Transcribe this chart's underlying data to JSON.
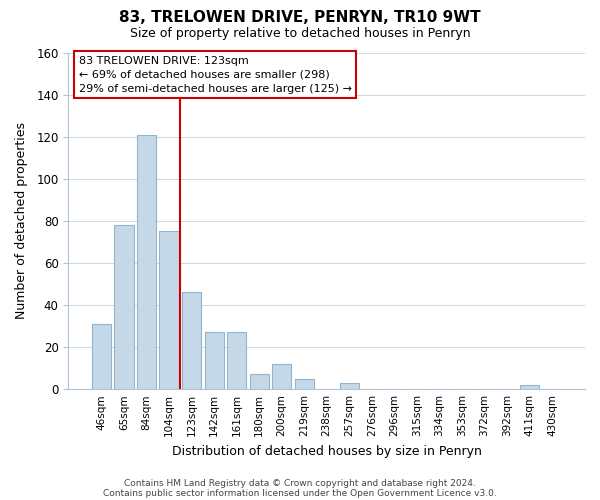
{
  "title": "83, TRELOWEN DRIVE, PENRYN, TR10 9WT",
  "subtitle": "Size of property relative to detached houses in Penryn",
  "xlabel": "Distribution of detached houses by size in Penryn",
  "ylabel": "Number of detached properties",
  "bin_labels": [
    "46sqm",
    "65sqm",
    "84sqm",
    "104sqm",
    "123sqm",
    "142sqm",
    "161sqm",
    "180sqm",
    "200sqm",
    "219sqm",
    "238sqm",
    "257sqm",
    "276sqm",
    "296sqm",
    "315sqm",
    "334sqm",
    "353sqm",
    "372sqm",
    "392sqm",
    "411sqm",
    "430sqm"
  ],
  "bar_values": [
    31,
    78,
    121,
    75,
    46,
    27,
    27,
    7,
    12,
    5,
    0,
    3,
    0,
    0,
    0,
    0,
    0,
    0,
    0,
    2,
    0
  ],
  "bar_color": "#c5d8e8",
  "bar_edge_color": "#92b4cc",
  "highlight_color": "#cc0000",
  "ylim": [
    0,
    160
  ],
  "yticks": [
    0,
    20,
    40,
    60,
    80,
    100,
    120,
    140,
    160
  ],
  "annotation_title": "83 TRELOWEN DRIVE: 123sqm",
  "annotation_line1": "← 69% of detached houses are smaller (298)",
  "annotation_line2": "29% of semi-detached houses are larger (125) →",
  "footer_line1": "Contains HM Land Registry data © Crown copyright and database right 2024.",
  "footer_line2": "Contains public sector information licensed under the Open Government Licence v3.0.",
  "background_color": "#ffffff",
  "grid_color": "#c8d8e8"
}
